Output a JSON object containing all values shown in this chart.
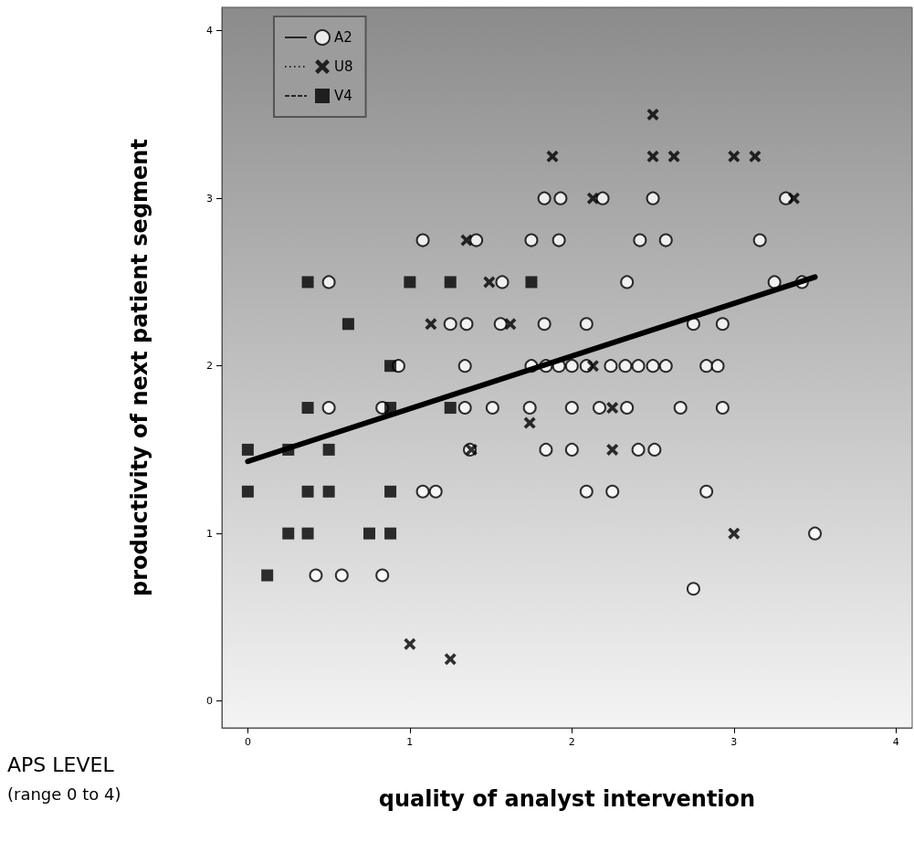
{
  "chart_data": {
    "type": "scatter",
    "xlabel": "quality of analyst intervention",
    "ylabel": "productivity of next patient segment",
    "annotations": [
      "APS LEVEL",
      "(range 0 to 4)"
    ],
    "xlim": [
      -0.16,
      4.1
    ],
    "ylim": [
      -0.16,
      4.14
    ],
    "xticks": [
      0,
      1,
      2,
      3,
      4
    ],
    "yticks": [
      0,
      1,
      2,
      3,
      4
    ],
    "grid": false,
    "legend": "top left",
    "series": [
      {
        "name": "A2",
        "color": "#000000",
        "marker": "circle",
        "line_style": "solid",
        "x": [
          1.83,
          1.93,
          2.19,
          2.5,
          3.32,
          1.08,
          1.41,
          1.75,
          1.92,
          2.42,
          2.58,
          3.16,
          0.5,
          1.57,
          2.34,
          3.25,
          3.42,
          1.25,
          1.35,
          1.56,
          1.83,
          2.09,
          2.75,
          2.93,
          0.93,
          1.34,
          1.75,
          1.84,
          1.92,
          2.0,
          2.09,
          2.24,
          2.33,
          2.41,
          2.5,
          2.58,
          2.83,
          2.9,
          0.5,
          0.83,
          1.34,
          1.51,
          1.74,
          2.0,
          2.17,
          2.34,
          2.67,
          2.93,
          1.37,
          1.84,
          2.0,
          2.41,
          2.51,
          1.08,
          1.16,
          2.09,
          2.25,
          2.83,
          3.5,
          0.42,
          0.58,
          0.83,
          2.75
        ],
        "values": [
          3,
          3,
          3,
          3,
          3,
          2.75,
          2.75,
          2.75,
          2.75,
          2.75,
          2.75,
          2.75,
          2.5,
          2.5,
          2.5,
          2.5,
          2.5,
          2.25,
          2.25,
          2.25,
          2.25,
          2.25,
          2.25,
          2.25,
          2,
          2,
          2,
          2,
          2,
          2,
          2,
          2,
          2,
          2,
          2,
          2,
          2,
          2,
          1.75,
          1.75,
          1.75,
          1.75,
          1.75,
          1.75,
          1.75,
          1.75,
          1.75,
          1.75,
          1.5,
          1.5,
          1.5,
          1.5,
          1.5,
          1.25,
          1.25,
          1.25,
          1.25,
          1.25,
          1,
          0.75,
          0.75,
          0.75,
          0.67
        ]
      },
      {
        "name": "U8",
        "color": "#000000",
        "marker": "cross",
        "line_style": "dotted",
        "x": [
          2.5,
          1.88,
          2.5,
          2.63,
          3.0,
          3.13,
          2.13,
          3.37,
          1.35,
          1.49,
          1.13,
          1.62,
          2.13,
          1.74,
          2.25,
          1.38,
          2.25,
          3.0,
          1.0,
          1.25
        ],
        "values": [
          3.5,
          3.25,
          3.25,
          3.25,
          3.25,
          3.25,
          3,
          3,
          2.75,
          2.5,
          2.25,
          2.25,
          2,
          1.66,
          1.75,
          1.5,
          1.5,
          1,
          0.34,
          0.25
        ]
      },
      {
        "name": "V4",
        "color": "#000000",
        "marker": "square",
        "line_style": "dashed",
        "x": [
          0.37,
          1.0,
          1.25,
          1.75,
          0.62,
          0.88,
          0.37,
          0.88,
          1.25,
          0,
          0.25,
          0.5,
          0,
          0.37,
          0.5,
          0.88,
          0.25,
          0.37,
          0.75,
          0.88,
          0.12
        ],
        "values": [
          2.5,
          2.5,
          2.5,
          2.5,
          2.25,
          2,
          1.75,
          1.75,
          1.75,
          1.5,
          1.5,
          1.5,
          1.25,
          1.25,
          1.25,
          1.25,
          1,
          1,
          1,
          1,
          0.75
        ]
      },
      {
        "type": "line",
        "color": "#000000",
        "line_style": "solid",
        "x": [
          0,
          3.5
        ],
        "values": [
          1.43,
          2.53
        ]
      }
    ]
  }
}
